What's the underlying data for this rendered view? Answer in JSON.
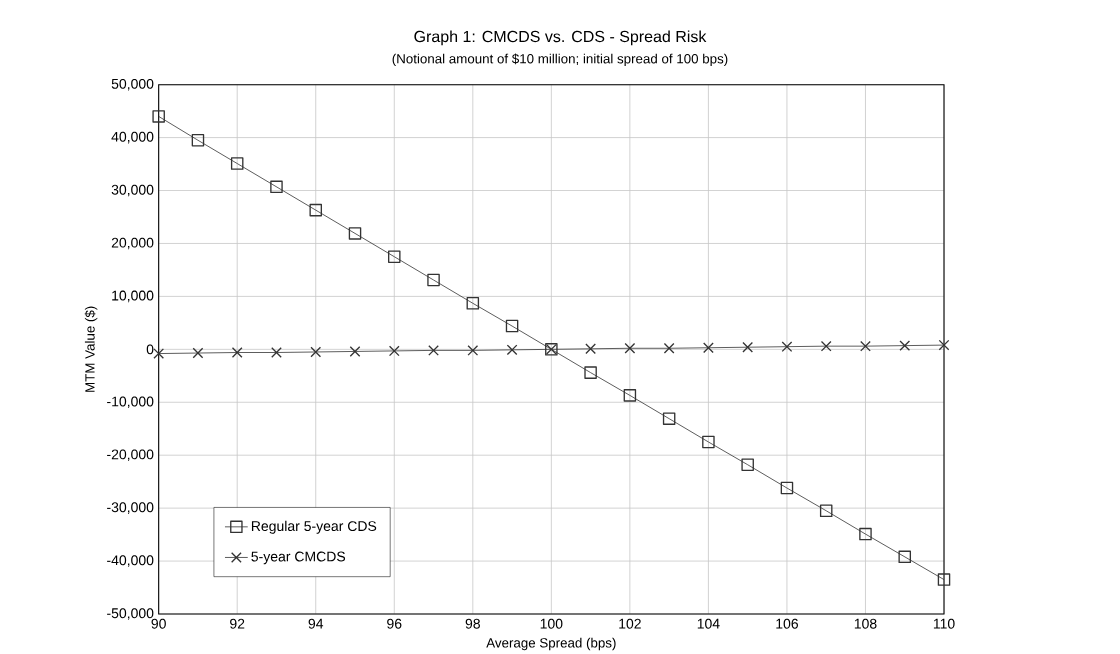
{
  "chart_data": {
    "type": "line",
    "title": "Graph 1:  CMCDS vs. CDS - Spread Risk",
    "subtitle": "(Notional amount of $10 million; initial spread of 100 bps)",
    "xlabel": "Average Spread (bps)",
    "ylabel": "MTM Value ($)",
    "x": [
      90,
      91,
      92,
      93,
      94,
      95,
      96,
      97,
      98,
      99,
      100,
      101,
      102,
      103,
      104,
      105,
      106,
      107,
      108,
      109,
      110
    ],
    "series": [
      {
        "name": "Regular 5-year CDS",
        "color": "#333333",
        "marker": "square",
        "values": [
          44000,
          39500,
          35100,
          30700,
          26300,
          21900,
          17500,
          13100,
          8700,
          4400,
          0,
          -4400,
          -8700,
          -13100,
          -17500,
          -21800,
          -26200,
          -30500,
          -34900,
          -39200,
          -43500
        ]
      },
      {
        "name": "5-year CMCDS",
        "color": "#333333",
        "marker": "cross",
        "values": [
          -800,
          -700,
          -600,
          -600,
          -500,
          -400,
          -300,
          -200,
          -200,
          -100,
          0,
          100,
          200,
          200,
          300,
          400,
          500,
          600,
          600,
          700,
          800
        ]
      }
    ],
    "xlim": [
      90,
      110
    ],
    "xticks": [
      90,
      92,
      94,
      96,
      98,
      100,
      102,
      104,
      106,
      108,
      110
    ],
    "ylim": [
      -50000,
      50000
    ],
    "yticks": [
      {
        "value": -50000,
        "label": "-50,000"
      },
      {
        "value": -40000,
        "label": "-40,000"
      },
      {
        "value": -30000,
        "label": "-30,000"
      },
      {
        "value": -20000,
        "label": "-20,000"
      },
      {
        "value": -10000,
        "label": "-10,000"
      },
      0,
      {
        "value": 10000,
        "label": "10,000"
      },
      {
        "value": 20000,
        "label": "20,000"
      },
      {
        "value": 30000,
        "label": "30,000"
      },
      {
        "value": 40000,
        "label": "40,000"
      },
      {
        "value": 50000,
        "label": "50,000"
      }
    ],
    "grid": true,
    "legend": "bottom left",
    "line_style": "solid"
  }
}
